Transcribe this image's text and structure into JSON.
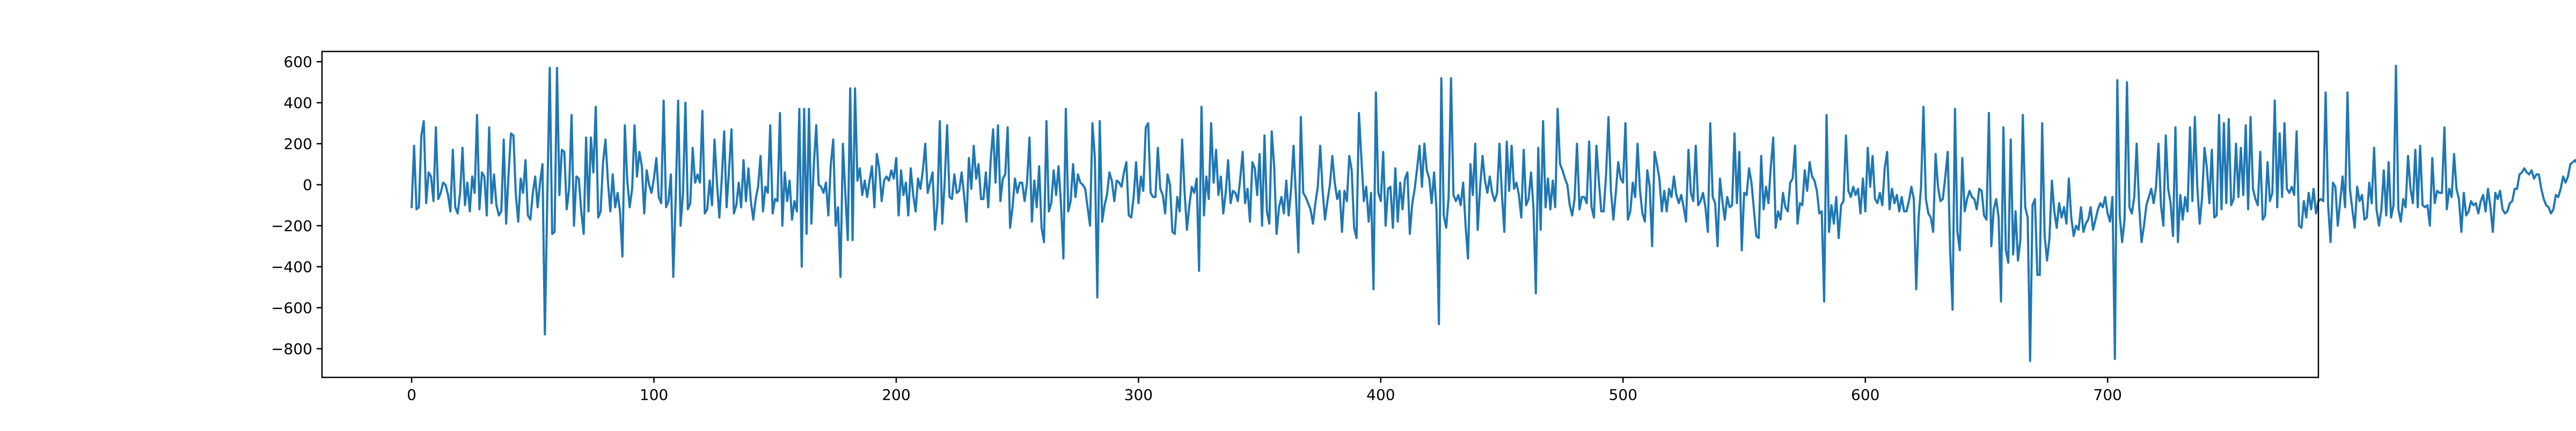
{
  "chart_data": {
    "type": "line",
    "title": "",
    "xlabel": "",
    "ylabel": "",
    "xlim": [
      -37,
      787
    ],
    "ylim": [
      -940,
      650
    ],
    "x_ticks": [
      0,
      100,
      200,
      300,
      400,
      500,
      600,
      700
    ],
    "y_ticks": [
      -800,
      -600,
      -400,
      -200,
      0,
      200,
      400,
      600
    ],
    "grid": false,
    "legend": "none",
    "series": [
      {
        "color": "#1f77b4",
        "x_start": 0,
        "x_step": 1,
        "values": [
          -110,
          190,
          -120,
          -110,
          240,
          310,
          -90,
          60,
          40,
          -80,
          280,
          -70,
          -40,
          10,
          0,
          -50,
          -130,
          170,
          -110,
          -140,
          -40,
          180,
          -100,
          10,
          -130,
          40,
          -40,
          340,
          -120,
          60,
          40,
          -150,
          280,
          -90,
          50,
          -100,
          -150,
          -130,
          220,
          -190,
          50,
          250,
          240,
          -50,
          -180,
          30,
          -40,
          120,
          -150,
          -170,
          -40,
          40,
          -110,
          10,
          100,
          -730,
          -50,
          570,
          -240,
          -230,
          570,
          -50,
          170,
          160,
          -120,
          -20,
          340,
          -200,
          40,
          30,
          -130,
          -240,
          230,
          -130,
          230,
          60,
          380,
          -160,
          -130,
          110,
          220,
          20,
          -130,
          50,
          -110,
          -40,
          -130,
          -350,
          290,
          20,
          -110,
          -20,
          290,
          40,
          160,
          90,
          -140,
          70,
          0,
          -40,
          30,
          130,
          -60,
          -90,
          410,
          -110,
          -80,
          50,
          -450,
          -60,
          410,
          -200,
          -40,
          400,
          -120,
          -90,
          180,
          10,
          50,
          10,
          360,
          -140,
          -120,
          20,
          -100,
          220,
          10,
          -160,
          30,
          260,
          -110,
          70,
          270,
          -140,
          -100,
          10,
          -110,
          120,
          -80,
          80,
          -80,
          -170,
          -70,
          -10,
          140,
          -130,
          -10,
          -40,
          290,
          -140,
          -70,
          -80,
          350,
          -200,
          60,
          -80,
          20,
          -170,
          -80,
          -130,
          370,
          -400,
          370,
          -240,
          370,
          -190,
          100,
          290,
          0,
          -10,
          -40,
          10,
          -150,
          100,
          220,
          -200,
          -110,
          -450,
          200,
          -40,
          -270,
          470,
          -270,
          470,
          20,
          80,
          -50,
          20,
          -60,
          20,
          90,
          -110,
          150,
          80,
          -80,
          20,
          40,
          20,
          70,
          30,
          130,
          -150,
          70,
          -50,
          10,
          -150,
          80,
          -50,
          -130,
          30,
          -20,
          70,
          200,
          -40,
          10,
          60,
          -220,
          -90,
          310,
          -190,
          10,
          290,
          -60,
          -70,
          50,
          -40,
          -30,
          60,
          -50,
          -180,
          130,
          -20,
          190,
          30,
          100,
          -70,
          -70,
          60,
          -110,
          120,
          270,
          10,
          290,
          -80,
          30,
          50,
          280,
          -210,
          -110,
          30,
          -40,
          10,
          10,
          -80,
          10,
          230,
          -180,
          20,
          -110,
          90,
          -210,
          -280,
          310,
          -130,
          -90,
          70,
          -50,
          90,
          -90,
          -360,
          370,
          -130,
          -80,
          100,
          -60,
          50,
          10,
          0,
          -20,
          -110,
          -200,
          300,
          130,
          -550,
          310,
          -180,
          -100,
          -50,
          60,
          20,
          -80,
          20,
          10,
          -10,
          60,
          110,
          -150,
          -160,
          -60,
          110,
          -90,
          40,
          -30,
          280,
          300,
          -40,
          -60,
          -60,
          180,
          -20,
          -50,
          -140,
          50,
          0,
          -230,
          -240,
          -60,
          -130,
          220,
          -30,
          -220,
          -100,
          -10,
          -40,
          30,
          -420,
          380,
          -150,
          40,
          -70,
          300,
          10,
          170,
          -50,
          40,
          -140,
          -40,
          120,
          -90,
          -30,
          -40,
          -80,
          30,
          160,
          -90,
          -20,
          -180,
          110,
          80,
          -50,
          150,
          -200,
          240,
          -130,
          -190,
          260,
          90,
          -240,
          -110,
          -60,
          -140,
          20,
          -150,
          -20,
          190,
          -60,
          -330,
          330,
          -40,
          -60,
          -90,
          -120,
          -190,
          -90,
          -10,
          190,
          -30,
          -170,
          -80,
          0,
          140,
          10,
          -70,
          -30,
          -230,
          -30,
          -80,
          140,
          70,
          -210,
          -260,
          350,
          130,
          -80,
          -10,
          -180,
          -40,
          -510,
          450,
          -40,
          -80,
          160,
          -200,
          -20,
          -10,
          -210,
          80,
          -180,
          10,
          -120,
          30,
          60,
          -240,
          -90,
          -20,
          80,
          190,
          -10,
          200,
          70,
          30,
          -90,
          60,
          -120,
          -680,
          520,
          -150,
          -210,
          -60,
          520,
          -50,
          -80,
          -50,
          -100,
          10,
          -200,
          -360,
          100,
          -50,
          200,
          -220,
          -10,
          140,
          20,
          -40,
          40,
          -40,
          -80,
          -40,
          200,
          -50,
          -230,
          210,
          -30,
          190,
          -20,
          10,
          -50,
          -160,
          170,
          -100,
          -70,
          60,
          -110,
          -530,
          180,
          -220,
          310,
          -110,
          30,
          -120,
          20,
          -110,
          370,
          100,
          70,
          30,
          0,
          -100,
          -150,
          -70,
          200,
          -120,
          -60,
          -60,
          -90,
          210,
          -110,
          -160,
          190,
          20,
          -130,
          -130,
          50,
          330,
          -30,
          -170,
          -40,
          110,
          30,
          10,
          300,
          -170,
          -130,
          10,
          -60,
          200,
          -30,
          -140,
          -180,
          70,
          -10,
          -300,
          160,
          100,
          30,
          -130,
          -30,
          -130,
          -20,
          -60,
          40,
          -50,
          -90,
          -50,
          -110,
          -180,
          170,
          -40,
          -80,
          190,
          -100,
          -80,
          -40,
          -110,
          -230,
          300,
          -60,
          -90,
          -300,
          30,
          -80,
          -170,
          -60,
          -110,
          -100,
          250,
          -90,
          160,
          -320,
          -40,
          -50,
          80,
          10,
          -120,
          -250,
          -260,
          140,
          -120,
          -10,
          -90,
          90,
          230,
          -210,
          -130,
          -170,
          -40,
          -110,
          -130,
          10,
          30,
          190,
          -190,
          -90,
          -100,
          70,
          -30,
          110,
          40,
          20,
          -30,
          -140,
          -130,
          -570,
          340,
          -230,
          -100,
          -190,
          -60,
          -260,
          -100,
          -80,
          240,
          -30,
          -60,
          -10,
          -50,
          -20,
          -140,
          30,
          -130,
          180,
          -10,
          140,
          -70,
          -90,
          -40,
          -100,
          80,
          160,
          -120,
          -20,
          -90,
          -50,
          -130,
          -60,
          -130,
          -130,
          -80,
          -10,
          -70,
          -510,
          -160,
          -10,
          380,
          -70,
          -140,
          -160,
          -230,
          150,
          -10,
          -80,
          -70,
          40,
          160,
          -320,
          -610,
          370,
          -230,
          -320,
          130,
          -130,
          -70,
          -30,
          -60,
          -70,
          -120,
          -20,
          -30,
          -150,
          -170,
          350,
          -300,
          -120,
          -70,
          -160,
          -570,
          280,
          -320,
          -380,
          220,
          -340,
          -130,
          -370,
          -270,
          340,
          -110,
          -160,
          -860,
          -100,
          -70,
          -440,
          -440,
          300,
          -250,
          -370,
          -260,
          20,
          -130,
          -210,
          -90,
          -160,
          -110,
          -190,
          30,
          -160,
          -250,
          -200,
          -220,
          -110,
          -230,
          -190,
          -170,
          -110,
          -220,
          -170,
          -120,
          -90,
          -110,
          -60,
          -140,
          -180,
          -60,
          -850,
          510,
          -150,
          -280,
          -170,
          500,
          -110,
          -140,
          -60,
          200,
          -100,
          -280,
          -200,
          -100,
          -60,
          -20,
          -90,
          -10,
          200,
          -100,
          -200,
          240,
          -20,
          -90,
          -250,
          280,
          -280,
          -50,
          -170,
          -60,
          -130,
          280,
          -80,
          330,
          -10,
          -190,
          -60,
          180,
          80,
          -90,
          170,
          -160,
          -150,
          340,
          -120,
          300,
          -90,
          320,
          -100,
          -70,
          200,
          -60,
          180,
          -50,
          290,
          -120,
          330,
          -20,
          -70,
          -100,
          160,
          -170,
          -150,
          110,
          -80,
          -40,
          410,
          -110,
          250,
          -60,
          300,
          -20,
          -40,
          -10,
          -50,
          260,
          -200,
          -210,
          -80,
          -160,
          -40,
          -120,
          -20,
          -140,
          -80,
          -70,
          -80,
          450,
          -100,
          -280,
          10,
          -10,
          -200,
          -80,
          40,
          -110,
          450,
          -20,
          -120,
          -210,
          -10,
          -80,
          -50,
          -170,
          -160,
          10,
          -90,
          180,
          -120,
          -200,
          -120,
          70,
          -150,
          110,
          -160,
          -100,
          580,
          -120,
          -180,
          -70,
          -110,
          140,
          -20,
          -90,
          170,
          -110,
          190,
          -100,
          -110,
          -100,
          -200,
          130,
          -90,
          -30,
          -40,
          -40,
          280,
          -120,
          -20,
          -60,
          150,
          -20,
          -70,
          -230,
          -40,
          -150,
          -130,
          -80,
          -100,
          -90,
          -140,
          -80,
          -50,
          -130,
          -20,
          -110,
          -230,
          -40,
          -70,
          -30,
          -120,
          -140,
          -130,
          -90,
          -80,
          -20,
          -20,
          50,
          60,
          80,
          60,
          50,
          70,
          30,
          50,
          50,
          -20,
          -70,
          -100,
          -110,
          -140,
          -120,
          -50,
          -60,
          -20,
          40,
          10,
          40,
          100,
          110,
          120,
          100,
          90,
          90,
          110,
          120,
          100,
          130,
          80,
          40,
          30,
          30,
          50,
          60,
          80,
          50,
          50,
          60,
          20,
          -10,
          -50,
          -80,
          -100,
          -80,
          -60,
          -30,
          -10,
          20,
          40,
          50,
          40,
          30,
          20,
          30,
          50,
          60,
          40,
          20,
          0,
          -30,
          -70,
          -100,
          -80,
          -60,
          -20,
          10,
          40,
          50,
          40,
          30,
          50,
          60,
          50,
          40,
          50,
          40
        ]
      }
    ]
  }
}
